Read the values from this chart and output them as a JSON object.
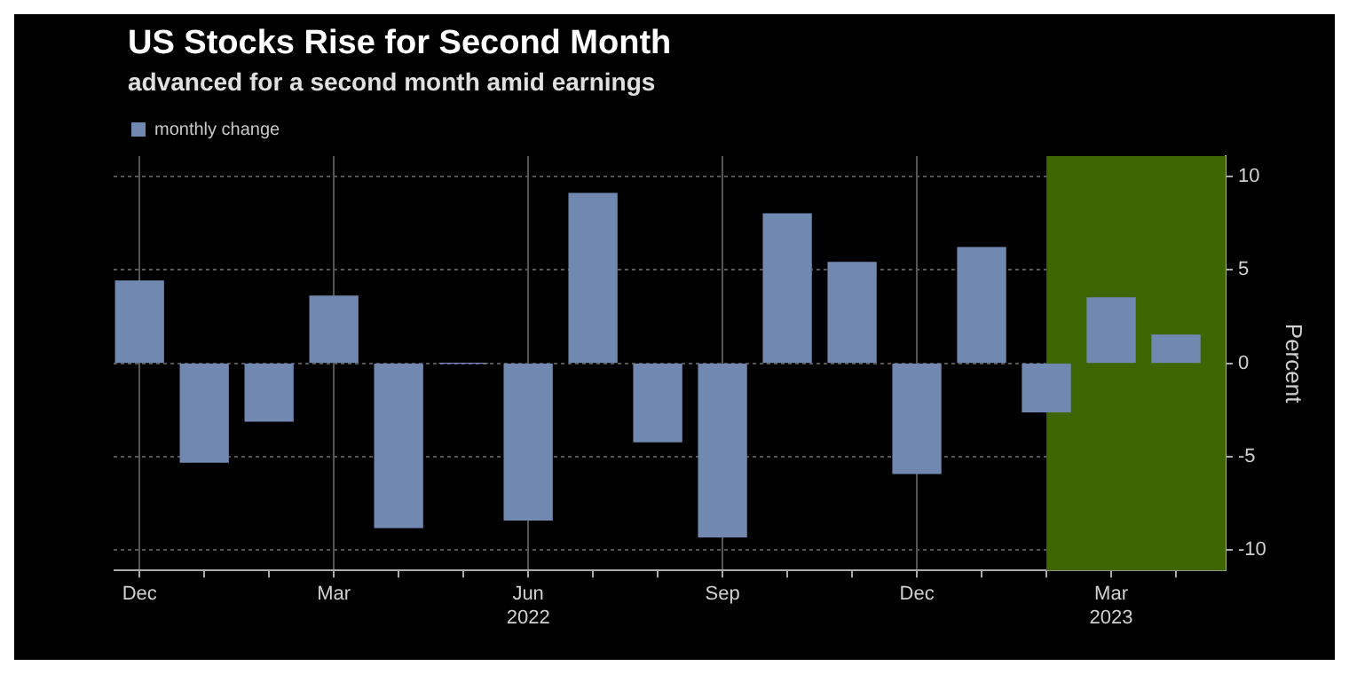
{
  "chart_data": {
    "type": "bar",
    "title": "US Stocks Rise for Second Month",
    "subtitle": "advanced for a second month amid earnings",
    "ylabel": "Percent",
    "x": [
      "2021-12",
      "2022-01",
      "2022-02",
      "2022-03",
      "2022-04",
      "2022-05",
      "2022-06",
      "2022-07",
      "2022-08",
      "2022-09",
      "2022-10",
      "2022-11",
      "2022-12",
      "2023-01",
      "2023-02",
      "2023-03",
      "2023-04"
    ],
    "series": [
      {
        "name": "monthly change",
        "color": "#7189b0",
        "values": [
          4.4,
          -5.3,
          -3.1,
          3.6,
          -8.8,
          0.0,
          -8.4,
          9.1,
          -4.2,
          -9.3,
          8.0,
          5.4,
          -5.9,
          6.2,
          -2.6,
          3.5,
          1.5
        ]
      }
    ],
    "xlim": [
      "2021-11-19",
      "2023-04-24"
    ],
    "xticks": [
      {
        "value": "2021-12",
        "label": "Dec"
      },
      {
        "value": "2022-01",
        "label": null
      },
      {
        "value": "2022-02",
        "label": null
      },
      {
        "value": "2022-03",
        "label": "Mar"
      },
      {
        "value": "2022-04",
        "label": null
      },
      {
        "value": "2022-05",
        "label": null
      },
      {
        "value": "2022-06",
        "label": "Jun\n2022"
      },
      {
        "value": "2022-07",
        "label": null
      },
      {
        "value": "2022-08",
        "label": null
      },
      {
        "value": "2022-09",
        "label": "Sep"
      },
      {
        "value": "2022-10",
        "label": null
      },
      {
        "value": "2022-11",
        "label": null
      },
      {
        "value": "2022-12",
        "label": "Dec"
      },
      {
        "value": "2023-01",
        "label": null
      },
      {
        "value": "2023-02",
        "label": null
      },
      {
        "value": "2023-03",
        "label": "Mar\n2023"
      },
      {
        "value": "2023-04",
        "label": null
      }
    ],
    "ylim": [
      -11.1,
      11.1
    ],
    "yticks": [
      -10,
      -5,
      0,
      5,
      10
    ],
    "bands": [
      {
        "axis": "x",
        "from": "2023-02",
        "to": "2023-04-24",
        "color": "#3d6600"
      }
    ],
    "grid": true,
    "legend": "top left"
  }
}
